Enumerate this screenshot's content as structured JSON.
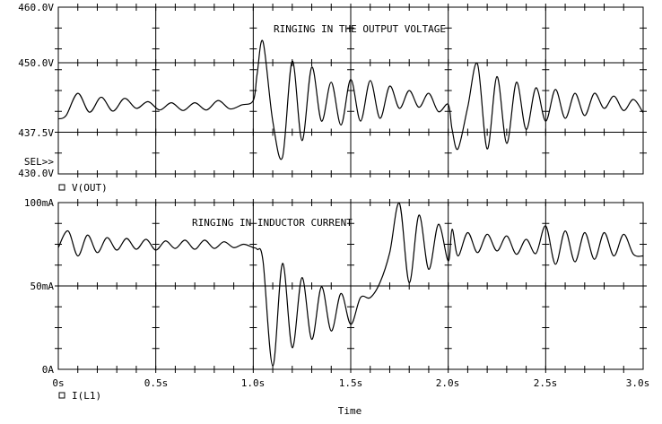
{
  "chart_data": [
    {
      "type": "line",
      "title": "RINGING IN THE OUTPUT VOLTAGE",
      "xlabel": "Time",
      "ylim": [
        430,
        460
      ],
      "y_ticks": [
        "460.0V",
        "450.0V",
        "437.5V",
        "430.0V"
      ],
      "y_tick_values": [
        460,
        450,
        437.5,
        430
      ],
      "selector_label": "SEL>>",
      "legend": "V(OUT)",
      "grid": true,
      "series": [
        {
          "name": "V(OUT)",
          "x": [
            0,
            0.04,
            0.1,
            0.16,
            0.22,
            0.28,
            0.34,
            0.4,
            0.46,
            0.52,
            0.58,
            0.64,
            0.7,
            0.76,
            0.82,
            0.88,
            0.94,
            1.0,
            1.02,
            1.05,
            1.1,
            1.15,
            1.2,
            1.25,
            1.3,
            1.35,
            1.4,
            1.45,
            1.5,
            1.55,
            1.6,
            1.65,
            1.7,
            1.75,
            1.8,
            1.85,
            1.9,
            1.95,
            2.0,
            2.02,
            2.05,
            2.1,
            2.15,
            2.2,
            2.25,
            2.3,
            2.35,
            2.4,
            2.45,
            2.5,
            2.55,
            2.6,
            2.65,
            2.7,
            2.75,
            2.8,
            2.85,
            2.9,
            2.95,
            3.0
          ],
          "y": [
            439.9,
            440.5,
            444.5,
            441.1,
            443.8,
            441.3,
            443.6,
            441.8,
            443.0,
            441.5,
            442.8,
            441.4,
            442.8,
            441.5,
            443.2,
            441.7,
            442.4,
            443.2,
            448.0,
            453.8,
            439.5,
            433.0,
            450.3,
            436.0,
            449.2,
            439.5,
            446.5,
            438.8,
            447.0,
            439.5,
            446.8,
            440.0,
            445.8,
            441.8,
            445.0,
            442.0,
            444.5,
            441.2,
            442.5,
            438.0,
            434.5,
            442.0,
            449.8,
            434.5,
            447.5,
            435.5,
            446.5,
            438.0,
            445.5,
            439.5,
            445.2,
            440.0,
            444.5,
            440.5,
            444.5,
            441.8,
            444.0,
            441.4,
            443.4,
            441.0
          ]
        }
      ]
    },
    {
      "type": "line",
      "title": "RINGING IN INDUCTOR CURRENT",
      "xlabel": "Time",
      "ylim": [
        0,
        100
      ],
      "y_ticks": [
        "100mA",
        "50mA",
        "0A"
      ],
      "y_tick_values": [
        100,
        50,
        0
      ],
      "x_ticks": [
        "0s",
        "0.5s",
        "1.0s",
        "1.5s",
        "2.0s",
        "2.5s",
        "3.0s"
      ],
      "x_tick_values": [
        0,
        0.5,
        1.0,
        1.5,
        2.0,
        2.5,
        3.0
      ],
      "legend": "I(L1)",
      "grid": true,
      "series": [
        {
          "name": "I(L1)",
          "x": [
            0,
            0.05,
            0.1,
            0.15,
            0.2,
            0.25,
            0.3,
            0.35,
            0.4,
            0.45,
            0.5,
            0.55,
            0.6,
            0.65,
            0.7,
            0.75,
            0.8,
            0.85,
            0.9,
            0.95,
            1.0,
            1.02,
            1.05,
            1.1,
            1.15,
            1.2,
            1.25,
            1.3,
            1.35,
            1.4,
            1.45,
            1.5,
            1.55,
            1.6,
            1.65,
            1.7,
            1.75,
            1.8,
            1.85,
            1.9,
            1.95,
            2.0,
            2.02,
            2.05,
            2.1,
            2.15,
            2.2,
            2.25,
            2.3,
            2.35,
            2.4,
            2.45,
            2.5,
            2.55,
            2.6,
            2.65,
            2.7,
            2.75,
            2.8,
            2.85,
            2.9,
            2.95,
            3.0
          ],
          "y": [
            73.0,
            83.0,
            68.0,
            80.5,
            70.0,
            79.0,
            71.5,
            78.5,
            72.0,
            78.0,
            71.5,
            77.0,
            72.5,
            77.5,
            72.0,
            77.5,
            72.5,
            76.5,
            73.0,
            75.0,
            73.0,
            72.0,
            65.0,
            2.0,
            63.5,
            13.0,
            55.0,
            18.0,
            49.5,
            23.0,
            45.5,
            27.0,
            43.0,
            43.0,
            52.0,
            70.0,
            99.5,
            52.0,
            92.5,
            60.0,
            87.0,
            65.0,
            84.0,
            68.0,
            82.0,
            70.0,
            81.0,
            71.0,
            80.0,
            69.0,
            78.0,
            69.5,
            86.0,
            63.0,
            83.0,
            64.5,
            82.0,
            66.0,
            82.0,
            68.0,
            81.0,
            69.0,
            68.0
          ]
        }
      ]
    }
  ]
}
